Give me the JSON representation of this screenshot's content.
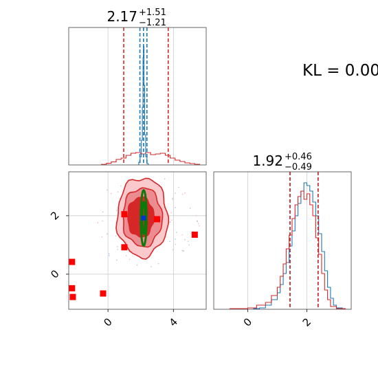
{
  "chart_data": [
    {
      "type": "histogram",
      "panel": "marginal-param-1",
      "title": {
        "value": "2.17",
        "plus": "+1.51",
        "minus": "−1.21"
      },
      "xlim": [
        -2.4,
        6.0
      ],
      "ylim": [
        0,
        1.0
      ],
      "grid": true,
      "series": [
        {
          "color": "#1f77b4",
          "edges": [
            1.8,
            1.88,
            1.96,
            2.04,
            2.1,
            2.14,
            2.17,
            2.2,
            2.24,
            2.3,
            2.38,
            2.46
          ],
          "counts": [
            0.0,
            0.02,
            0.06,
            0.18,
            0.42,
            0.78,
            0.86,
            0.58,
            0.22,
            0.06,
            0.01
          ]
        },
        {
          "color": "#d62728",
          "edges": [
            -0.4,
            -0.1,
            0.2,
            0.5,
            0.8,
            1.1,
            1.4,
            1.7,
            2.0,
            2.3,
            2.6,
            2.9,
            3.2,
            3.5,
            3.8,
            4.1,
            4.4,
            4.7,
            5.0,
            5.3,
            5.6
          ],
          "counts": [
            0.004,
            0.012,
            0.022,
            0.04,
            0.05,
            0.07,
            0.085,
            0.09,
            0.08,
            0.09,
            0.075,
            0.08,
            0.085,
            0.07,
            0.05,
            0.035,
            0.025,
            0.015,
            0.01,
            0.005
          ]
        }
      ],
      "quantiles": [
        {
          "color": "#1f77b4",
          "values": [
            1.95,
            2.17,
            2.38
          ]
        },
        {
          "color": "#d62728",
          "values": [
            0.96,
            3.68
          ]
        }
      ]
    },
    {
      "type": "histogram",
      "panel": "marginal-param-2",
      "title": {
        "value": "1.92",
        "plus": "+0.46",
        "minus": "−0.49"
      },
      "xlim": [
        -1.15,
        3.5
      ],
      "ylim": [
        0,
        1.0
      ],
      "xticks": [
        "0",
        "2"
      ],
      "grid": true,
      "series": [
        {
          "color": "#1f77b4",
          "edges": [
            0.2,
            0.4,
            0.6,
            0.8,
            1.0,
            1.1,
            1.2,
            1.3,
            1.4,
            1.5,
            1.6,
            1.7,
            1.8,
            1.9,
            2.0,
            2.1,
            2.2,
            2.3,
            2.4,
            2.5,
            2.6,
            2.7,
            2.8,
            2.9,
            3.0,
            3.2
          ],
          "counts": [
            0.005,
            0.01,
            0.03,
            0.07,
            0.12,
            0.18,
            0.26,
            0.34,
            0.46,
            0.57,
            0.68,
            0.77,
            0.86,
            0.92,
            0.9,
            0.86,
            0.78,
            0.68,
            0.55,
            0.42,
            0.28,
            0.16,
            0.08,
            0.03,
            0.01
          ]
        },
        {
          "color": "#d62728",
          "edges": [
            -0.6,
            0.0,
            0.3,
            0.6,
            0.8,
            1.0,
            1.1,
            1.2,
            1.3,
            1.4,
            1.5,
            1.6,
            1.7,
            1.8,
            1.9,
            2.0,
            2.1,
            2.2,
            2.3,
            2.4,
            2.5,
            2.6,
            2.7,
            2.8,
            3.0,
            3.3
          ],
          "counts": [
            0.005,
            0.01,
            0.03,
            0.05,
            0.1,
            0.16,
            0.24,
            0.33,
            0.44,
            0.54,
            0.66,
            0.76,
            0.82,
            0.86,
            0.8,
            0.84,
            0.76,
            0.68,
            0.52,
            0.4,
            0.26,
            0.14,
            0.07,
            0.02,
            0.005
          ]
        }
      ],
      "quantiles": [
        {
          "color": "#1f77b4",
          "values": [
            1.43,
            2.38
          ]
        },
        {
          "color": "#d62728",
          "values": [
            1.43,
            2.38
          ]
        }
      ]
    },
    {
      "type": "contour-scatter",
      "panel": "joint-param-1-param-2",
      "xlim": [
        -2.4,
        6.0
      ],
      "ylim": [
        -1.2,
        3.5
      ],
      "xticks": [
        "0",
        "4"
      ],
      "yticks": [
        "0",
        "2"
      ],
      "grid": true,
      "red_contours": [
        {
          "center": [
            2.1,
            1.95
          ],
          "radii": [
            3.1,
            1.35
          ],
          "fill": "#f9c9cb"
        },
        {
          "center": [
            2.1,
            1.95
          ],
          "radii": [
            2.4,
            1.0
          ],
          "fill": "#ec8c90"
        },
        {
          "center": [
            2.0,
            1.95
          ],
          "radii": [
            1.6,
            0.68
          ],
          "fill": "#d62728"
        }
      ],
      "green_contours": [
        {
          "center": [
            2.18,
            1.92
          ],
          "radii": [
            0.18,
            0.95
          ]
        },
        {
          "center": [
            2.18,
            1.92
          ],
          "radii": [
            0.09,
            0.55
          ]
        }
      ],
      "red_markers": [
        [
          -2.2,
          0.42
        ],
        [
          -2.2,
          -0.48
        ],
        [
          -2.15,
          -0.78
        ],
        [
          -0.3,
          -0.66
        ],
        [
          1.0,
          2.05
        ],
        [
          1.0,
          0.92
        ],
        [
          3.0,
          1.88
        ],
        [
          5.3,
          1.35
        ]
      ],
      "blue_marker": [
        2.17,
        1.92
      ]
    }
  ],
  "annotation": {
    "text": "KL = 0.00"
  },
  "colors": {
    "blue": "#1f77b4",
    "red": "#d62728",
    "green": "#0b7a0b",
    "red_light": "#f9c9cb",
    "red_mid": "#ec8c90"
  }
}
